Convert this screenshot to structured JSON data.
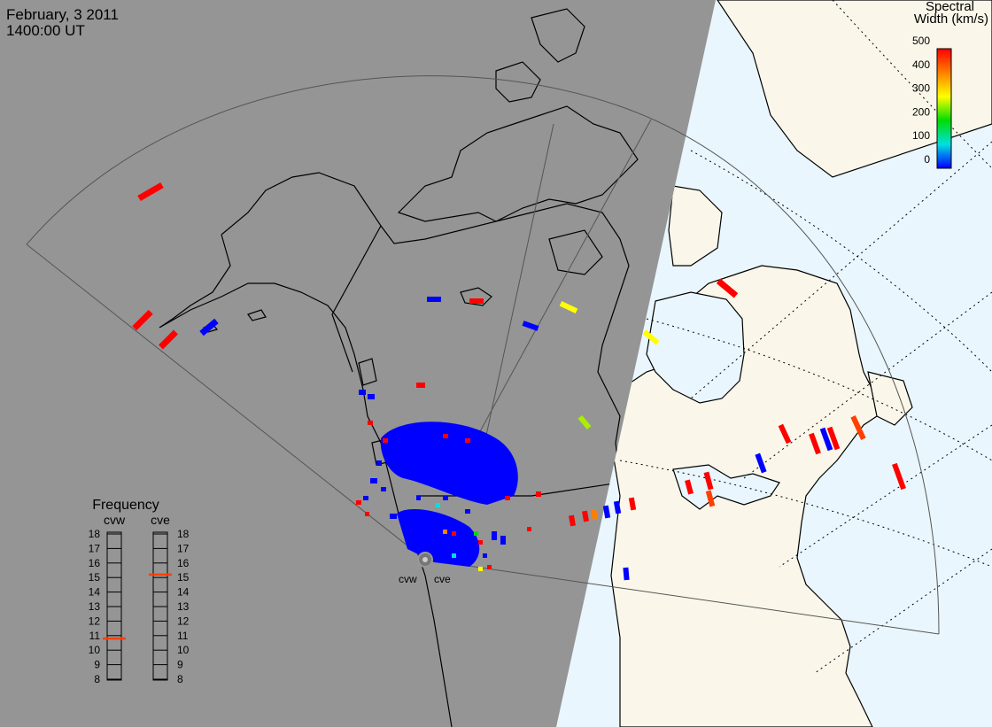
{
  "header": {
    "date": "February, 3 2011",
    "time": "1400:00 UT"
  },
  "colorbar": {
    "title_line1": "Spectral",
    "title_line2": "Width (km/s)",
    "ticks": [
      "500",
      "400",
      "300",
      "200",
      "100",
      "0"
    ],
    "colors": [
      "#ff0000",
      "#ff7f00",
      "#ffff00",
      "#00dd00",
      "#00e0e0",
      "#0000ff"
    ]
  },
  "frequency": {
    "title": "Frequency",
    "radars": [
      {
        "label": "cvw",
        "value": 10.8,
        "marker_color": "#ff4000"
      },
      {
        "label": "cve",
        "value": 15.2,
        "marker_color": "#ff4000"
      }
    ],
    "ticks": [
      "18",
      "17",
      "16",
      "15",
      "14",
      "13",
      "12",
      "11",
      "10",
      "9",
      "8"
    ],
    "range": [
      8,
      18
    ]
  },
  "stations": [
    {
      "label": "cvw"
    },
    {
      "label": "cve"
    }
  ],
  "colors": {
    "night": "#959595",
    "day_land": "#faf7ea",
    "day_ocean": "#eaf6fd",
    "coast": "#000000",
    "fov": "#555555",
    "scatter": "#0000ff"
  }
}
